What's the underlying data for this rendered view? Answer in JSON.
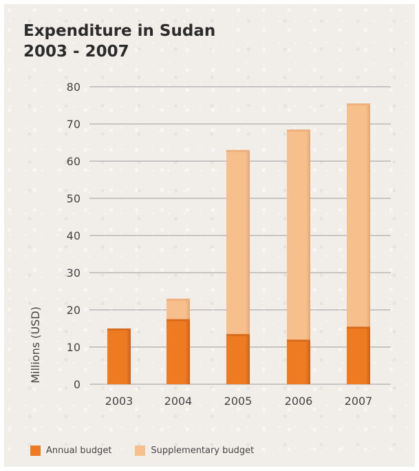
{
  "title_line1": "Expenditure in Sudan",
  "title_line2": "2003 - 2007",
  "chart_data": {
    "type": "bar",
    "stacked": true,
    "categories": [
      "2003",
      "2004",
      "2005",
      "2006",
      "2007"
    ],
    "series": [
      {
        "name": "Annual budget",
        "values": [
          15,
          17.5,
          13.5,
          12,
          15.5
        ],
        "color": "#ee7a22"
      },
      {
        "name": "Supplementary budget",
        "values": [
          0,
          5.5,
          49.5,
          56.5,
          60
        ],
        "color": "#f6bf8c"
      }
    ],
    "ylabel": "Millions (USD)",
    "xlabel": "",
    "ylim": [
      0,
      80
    ],
    "yticks": [
      "0",
      "10",
      "20",
      "30",
      "40",
      "50",
      "60",
      "70",
      "80"
    ],
    "grid": true,
    "legend_position": "bottom-left"
  }
}
